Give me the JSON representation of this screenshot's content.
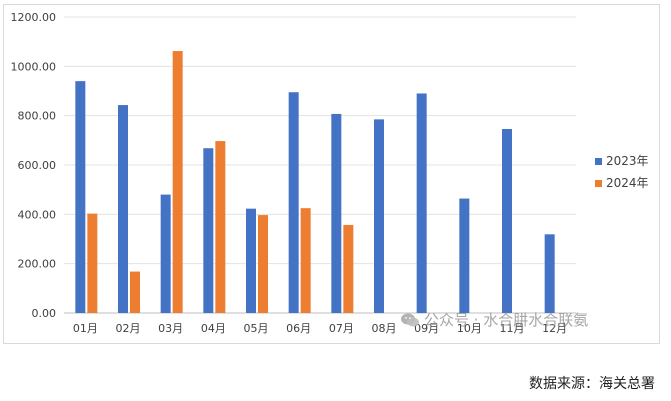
{
  "chart_data": {
    "type": "bar",
    "categories": [
      "01月",
      "02月",
      "03月",
      "04月",
      "05月",
      "06月",
      "07月",
      "08月",
      "09月",
      "10月",
      "11月",
      "12月"
    ],
    "series": [
      {
        "name": "2023年",
        "color": "#4472C4",
        "values": [
          940,
          843,
          480,
          668,
          423,
          895,
          807,
          785,
          890,
          464,
          746,
          319
        ]
      },
      {
        "name": "2024年",
        "color": "#ED7D31",
        "values": [
          403,
          168,
          1062,
          697,
          397,
          425,
          357,
          null,
          null,
          null,
          null,
          null
        ]
      }
    ],
    "ylim": [
      0,
      1200
    ],
    "yticks": [
      0,
      200,
      400,
      600,
      800,
      1000,
      1200
    ],
    "ytick_labels": [
      "0.00",
      "200.00",
      "400.00",
      "600.00",
      "800.00",
      "1000.00",
      "1200.00"
    ],
    "grid": true,
    "legend_position": "right"
  },
  "watermark": {
    "text": "公众号 · 水合肼水合联氨",
    "icon": "wechat-icon"
  },
  "source_note": "数据来源：海关总署"
}
